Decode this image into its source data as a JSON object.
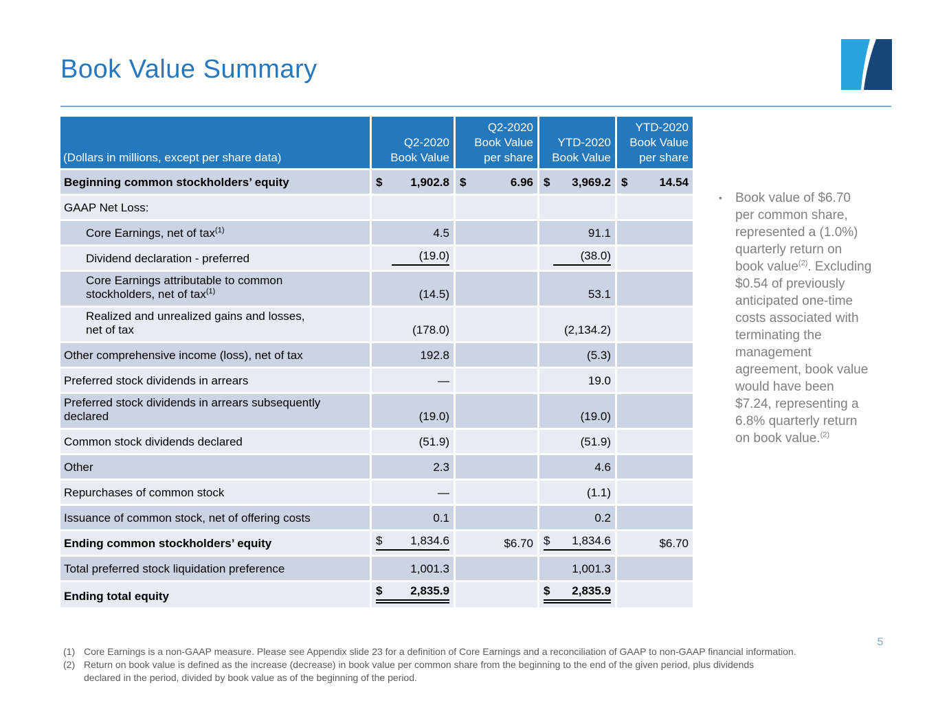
{
  "colors": {
    "header_blue": "#2478BC",
    "band_dark": "#CBD4E3",
    "band_light": "#E8EBF3",
    "title_blue": "#2777BD",
    "rule_blue": "#76ABD7",
    "note_gray": "#7F7F7F",
    "footnote_gray": "#595959",
    "page_num_blue": "#7CA6CF",
    "logo_light_blue": "#29A3DC",
    "logo_dark_blue": "#164578",
    "underline_black": "#000000"
  },
  "slide": {
    "title": "Book Value Summary",
    "page_number": "5"
  },
  "table": {
    "header": {
      "col1": "(Dollars in millions, except per share data)",
      "cols": [
        "Q2-2020\nBook Value",
        "Q2-2020\nBook Value\nper share",
        "YTD-2020\nBook Value",
        "YTD-2020\nBook Value\nper share"
      ]
    },
    "rows": [
      {
        "label": "Beginning common stockholders’ equity",
        "bold": true,
        "bold_values": true,
        "cells": [
          {
            "cur": "$",
            "num": "1,902.8"
          },
          {
            "cur": "$",
            "num": "6.96"
          },
          {
            "cur": "$",
            "num": "3,969.2"
          },
          {
            "cur": "$",
            "num": "14.54"
          }
        ]
      },
      {
        "label": "GAAP Net Loss:",
        "cells": [
          {},
          {},
          {},
          {}
        ]
      },
      {
        "label": "Core Earnings, net of tax",
        "sup": "(1)",
        "indent": true,
        "cells": [
          {
            "num": "4.5"
          },
          {},
          {
            "num": "91.1"
          },
          {}
        ]
      },
      {
        "label": "Dividend declaration - preferred",
        "indent": true,
        "cells": [
          {
            "num": "(19.0)",
            "ul": "num"
          },
          {},
          {
            "num": "(38.0)",
            "ul": "num"
          },
          {}
        ]
      },
      {
        "label": "Core Earnings attributable to common\nstockholders, net of tax",
        "sup": "(1)",
        "indent": true,
        "cells": [
          {
            "num": "(14.5)"
          },
          {},
          {
            "num": "53.1"
          },
          {}
        ]
      },
      {
        "label": "Realized and unrealized gains and losses,\nnet of tax",
        "indent": true,
        "cells": [
          {
            "num": "(178.0)"
          },
          {},
          {
            "num": "(2,134.2)"
          },
          {}
        ]
      },
      {
        "label": "Other comprehensive income (loss), net of tax",
        "cells": [
          {
            "num": "192.8"
          },
          {},
          {
            "num": "(5.3)"
          },
          {}
        ]
      },
      {
        "label": "Preferred stock dividends in arrears",
        "cells": [
          {
            "num": "—"
          },
          {},
          {
            "num": "19.0"
          },
          {}
        ]
      },
      {
        "label": "Preferred stock dividends in arrears subsequently\ndeclared",
        "cells": [
          {
            "num": "(19.0)"
          },
          {},
          {
            "num": "(19.0)"
          },
          {}
        ]
      },
      {
        "label": "Common stock dividends declared",
        "cells": [
          {
            "num": "(51.9)"
          },
          {},
          {
            "num": "(51.9)"
          },
          {}
        ]
      },
      {
        "label": "Other",
        "cells": [
          {
            "num": "2.3"
          },
          {},
          {
            "num": "4.6"
          },
          {}
        ]
      },
      {
        "label": "Repurchases of common stock",
        "cells": [
          {
            "num": "—"
          },
          {},
          {
            "num": "(1.1)"
          },
          {}
        ]
      },
      {
        "label": "Issuance of common stock, net of offering costs",
        "cells": [
          {
            "num": "0.1"
          },
          {},
          {
            "num": "0.2"
          },
          {}
        ]
      },
      {
        "label": "Ending common stockholders’ equity",
        "bold": true,
        "cells": [
          {
            "cur": "$",
            "num": "1,834.6",
            "ul": "full"
          },
          {
            "num": "$6.70"
          },
          {
            "cur": "$",
            "num": "1,834.6",
            "ul": "full"
          },
          {
            "num": "$6.70"
          }
        ]
      },
      {
        "label": "Total preferred stock liquidation preference",
        "cells": [
          {
            "num": "1,001.3"
          },
          {},
          {
            "num": "1,001.3"
          },
          {}
        ]
      },
      {
        "label": "Ending total equity",
        "bold": true,
        "bold_values": true,
        "cells": [
          {
            "cur": "$",
            "num": "2,835.9",
            "ul": "double"
          },
          {},
          {
            "cur": "$",
            "num": "2,835.9",
            "ul": "double"
          },
          {}
        ]
      }
    ]
  },
  "sidebar": {
    "bullet": "•",
    "lines": [
      [
        {
          "t": "Book value of $6.70"
        }
      ],
      [
        {
          "t": "per common share,"
        }
      ],
      [
        {
          "t": "represented a (1.0%)"
        }
      ],
      [
        {
          "t": "quarterly return on"
        }
      ],
      [
        {
          "t": "book value"
        },
        {
          "sup": "(2)"
        },
        {
          "t": ". Excluding"
        }
      ],
      [
        {
          "t": "$0.54 of previously"
        }
      ],
      [
        {
          "t": "anticipated one-time"
        }
      ],
      [
        {
          "t": "costs associated with"
        }
      ],
      [
        {
          "t": "terminating the"
        }
      ],
      [
        {
          "t": "management"
        }
      ],
      [
        {
          "t": "agreement, book value"
        }
      ],
      [
        {
          "t": "would have been"
        }
      ],
      [
        {
          "t": "$7.24, representing a"
        }
      ],
      [
        {
          "t": "6.8% quarterly return"
        }
      ],
      [
        {
          "t": "on book value."
        },
        {
          "sup": "(2)"
        }
      ]
    ]
  },
  "footnotes": [
    {
      "marker": "(1)",
      "lines": [
        "Core Earnings is a non-GAAP measure. Please see Appendix slide 23 for a definition of Core Earnings and a reconciliation of GAAP to non-GAAP financial information."
      ]
    },
    {
      "marker": "(2)",
      "lines": [
        "Return on book value is defined as the increase (decrease) in book value per common share from the beginning to the end of the given period, plus dividends",
        "declared in the period, divided by book value as of the beginning of the period."
      ]
    }
  ]
}
